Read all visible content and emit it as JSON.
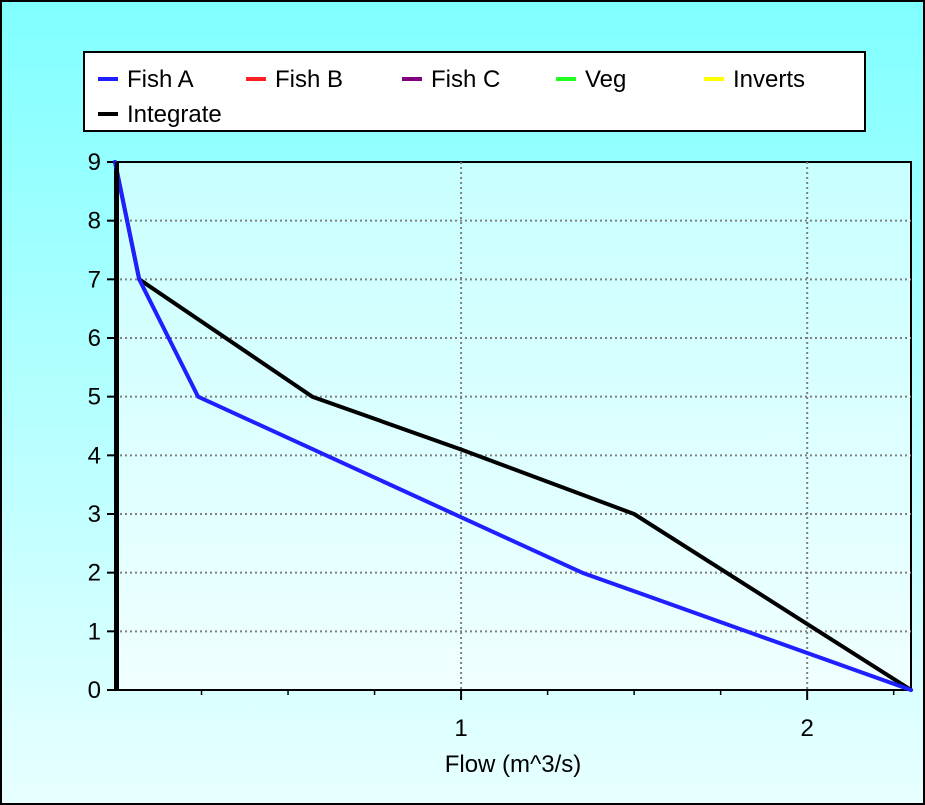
{
  "chart_data": {
    "type": "line",
    "title": "",
    "xlabel": "Flow  (m^3/s)",
    "ylabel": "",
    "xlim": [
      0,
      2.3
    ],
    "ylim": [
      0,
      9
    ],
    "x_ticks": [
      1,
      2
    ],
    "x_tick_labels": [
      "1",
      "2"
    ],
    "y_ticks": [
      0,
      1,
      2,
      3,
      4,
      5,
      6,
      7,
      8,
      9
    ],
    "y_tick_labels": [
      "0",
      "1",
      "2",
      "3",
      "4",
      "5",
      "6",
      "7",
      "8",
      "9"
    ],
    "grid": true,
    "legend_position": "top",
    "series": [
      {
        "name": "Fish A",
        "color": "#1f1fff",
        "x": [
          0,
          0.07,
          0.24,
          1.35,
          2.3
        ],
        "y": [
          9,
          7,
          5,
          2,
          0
        ]
      },
      {
        "name": "Fish B",
        "color": "#ff2020",
        "x": [],
        "y": []
      },
      {
        "name": "Fish C",
        "color": "#800080",
        "x": [],
        "y": []
      },
      {
        "name": "Veg",
        "color": "#20ff20",
        "x": [],
        "y": []
      },
      {
        "name": "Inverts",
        "color": "#ffff00",
        "x": [],
        "y": []
      },
      {
        "name": "Integrate",
        "color": "#000000",
        "x": [
          0,
          0.07,
          0.57,
          1.0,
          1.5,
          2.3
        ],
        "y": [
          9,
          7,
          5,
          4.1,
          3,
          0
        ]
      }
    ],
    "background": {
      "top": "#80ffff",
      "bottom": "#e8ffff"
    },
    "plot_background": {
      "top": "#c8ffff",
      "bottom": "#f0ffff"
    }
  }
}
